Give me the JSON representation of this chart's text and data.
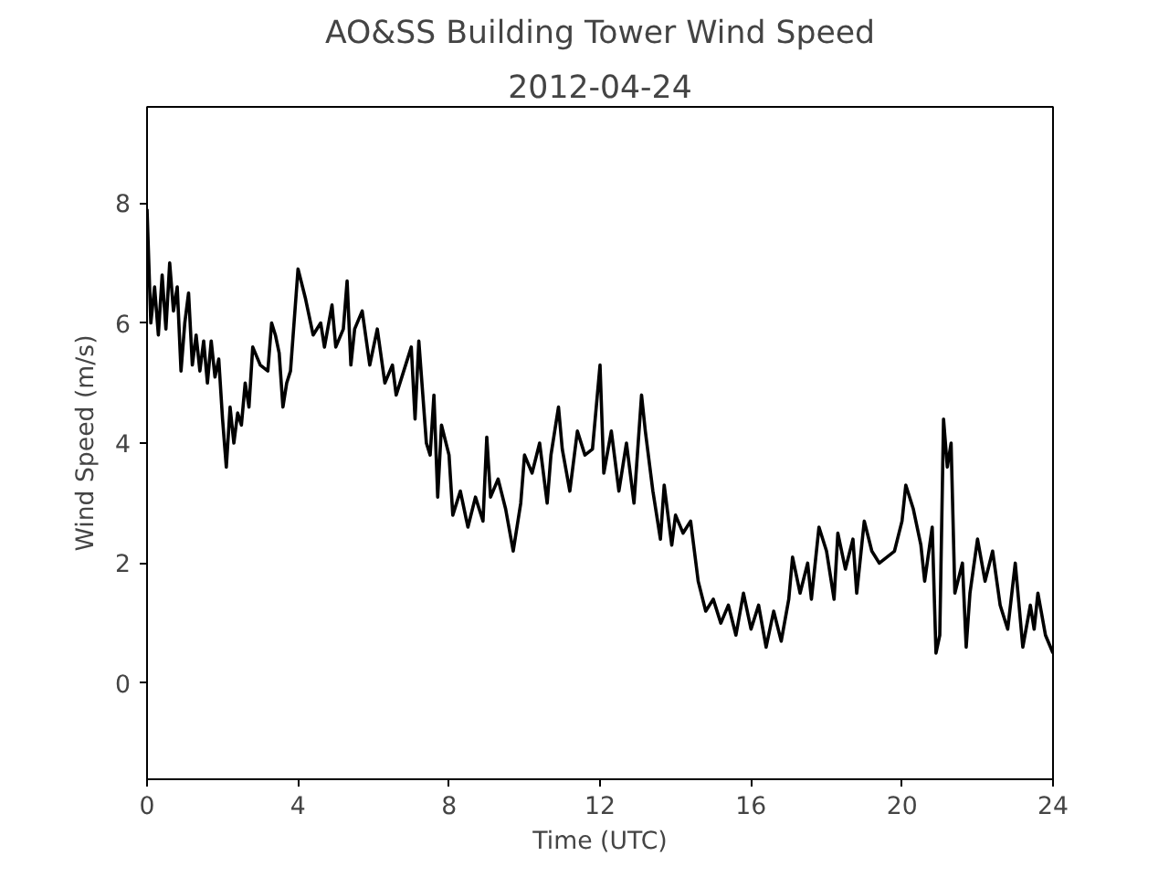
{
  "chart_data": {
    "type": "line",
    "title": "AO&SS Building Tower Wind Speed",
    "subtitle": "2012-04-24",
    "xlabel": "Time (UTC)",
    "ylabel": "Wind Speed (m/s)",
    "xlim": [
      0,
      24
    ],
    "xticks": [
      0,
      4,
      8,
      12,
      16,
      20,
      24
    ],
    "ylim": [
      -1.6,
      9.6
    ],
    "yticks": [
      0,
      2,
      4,
      6,
      8
    ],
    "grid": false,
    "marker": "none",
    "line_style": "solid",
    "series": [
      {
        "color": "#000000",
        "x": [
          0,
          0.1,
          0.2,
          0.3,
          0.4,
          0.5,
          0.6,
          0.7,
          0.8,
          0.9,
          1.0,
          1.1,
          1.2,
          1.3,
          1.4,
          1.5,
          1.6,
          1.7,
          1.8,
          1.9,
          2.0,
          2.1,
          2.2,
          2.3,
          2.4,
          2.5,
          2.6,
          2.7,
          2.8,
          3.0,
          3.2,
          3.3,
          3.4,
          3.5,
          3.6,
          3.7,
          3.8,
          4.0,
          4.2,
          4.4,
          4.6,
          4.7,
          4.9,
          5.0,
          5.2,
          5.3,
          5.4,
          5.5,
          5.7,
          5.9,
          6.1,
          6.3,
          6.5,
          6.6,
          6.8,
          7.0,
          7.1,
          7.2,
          7.4,
          7.5,
          7.6,
          7.7,
          7.8,
          8.0,
          8.1,
          8.3,
          8.5,
          8.7,
          8.9,
          9.0,
          9.1,
          9.3,
          9.5,
          9.7,
          9.9,
          10.0,
          10.2,
          10.4,
          10.6,
          10.7,
          10.9,
          11.0,
          11.2,
          11.4,
          11.6,
          11.8,
          12.0,
          12.1,
          12.3,
          12.5,
          12.7,
          12.9,
          13.1,
          13.2,
          13.4,
          13.6,
          13.7,
          13.9,
          14.0,
          14.2,
          14.4,
          14.6,
          14.8,
          15.0,
          15.2,
          15.4,
          15.6,
          15.8,
          16.0,
          16.2,
          16.4,
          16.6,
          16.8,
          17.0,
          17.1,
          17.3,
          17.5,
          17.6,
          17.8,
          18.0,
          18.2,
          18.3,
          18.5,
          18.7,
          18.8,
          19.0,
          19.2,
          19.4,
          19.6,
          19.8,
          20.0,
          20.1,
          20.3,
          20.5,
          20.6,
          20.8,
          20.9,
          21.0,
          21.1,
          21.2,
          21.3,
          21.4,
          21.6,
          21.7,
          21.8,
          22.0,
          22.2,
          22.4,
          22.6,
          22.8,
          23.0,
          23.2,
          23.4,
          23.5,
          23.6,
          23.8,
          24.0
        ],
        "values": [
          7.9,
          6.0,
          6.6,
          5.8,
          6.8,
          5.9,
          7.0,
          6.2,
          6.6,
          5.2,
          6.0,
          6.5,
          5.3,
          5.8,
          5.2,
          5.7,
          5.0,
          5.7,
          5.1,
          5.4,
          4.4,
          3.6,
          4.6,
          4.0,
          4.5,
          4.3,
          5.0,
          4.6,
          5.6,
          5.3,
          5.2,
          6.0,
          5.8,
          5.5,
          4.6,
          5.0,
          5.2,
          6.9,
          6.4,
          5.8,
          6.0,
          5.6,
          6.3,
          5.6,
          5.9,
          6.7,
          5.3,
          5.9,
          6.2,
          5.3,
          5.9,
          5.0,
          5.3,
          4.8,
          5.2,
          5.6,
          4.4,
          5.7,
          4.0,
          3.8,
          4.8,
          3.1,
          4.3,
          3.8,
          2.8,
          3.2,
          2.6,
          3.1,
          2.7,
          4.1,
          3.1,
          3.4,
          2.9,
          2.2,
          3.0,
          3.8,
          3.5,
          4.0,
          3.0,
          3.8,
          4.6,
          3.9,
          3.2,
          4.2,
          3.8,
          3.9,
          5.3,
          3.5,
          4.2,
          3.2,
          4.0,
          3.0,
          4.8,
          4.2,
          3.2,
          2.4,
          3.3,
          2.3,
          2.8,
          2.5,
          2.7,
          1.7,
          1.2,
          1.4,
          1.0,
          1.3,
          0.8,
          1.5,
          0.9,
          1.3,
          0.6,
          1.2,
          0.7,
          1.4,
          2.1,
          1.5,
          2.0,
          1.4,
          2.6,
          2.2,
          1.4,
          2.5,
          1.9,
          2.4,
          1.5,
          2.7,
          2.2,
          2.0,
          2.1,
          2.2,
          2.7,
          3.3,
          2.9,
          2.3,
          1.7,
          2.6,
          0.5,
          0.8,
          4.4,
          3.6,
          4.0,
          1.5,
          2.0,
          0.6,
          1.5,
          2.4,
          1.7,
          2.2,
          1.3,
          0.9,
          2.0,
          0.6,
          1.3,
          0.9,
          1.5,
          0.8,
          0.5
        ]
      }
    ]
  }
}
